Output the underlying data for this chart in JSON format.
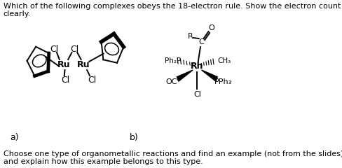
{
  "title_line1": "Which of the following complexes obeys the 18-electron rule. Show the electron count",
  "title_line2": "clearly.",
  "label_a": "a)",
  "label_b": "b)",
  "footer_line1": "Choose one type of organometallic reactions and find an example (not from the slides)",
  "footer_line2": "and explain how this example belongs to this type.",
  "bg_color": "#ffffff",
  "text_color": "#000000",
  "font_size_main": 8.0,
  "font_size_label": 9.0,
  "font_size_chem": 9.0,
  "font_size_small": 8.0
}
